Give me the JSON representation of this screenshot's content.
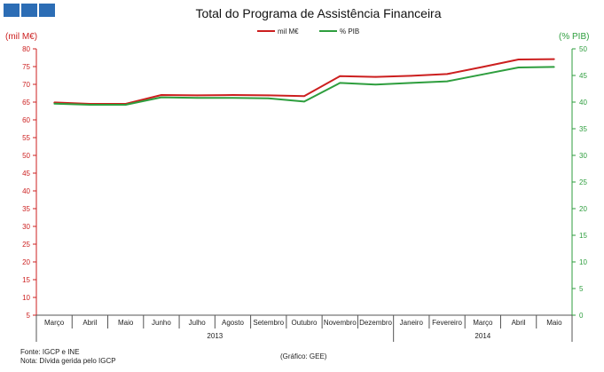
{
  "logo": {
    "color": "#2c6db5"
  },
  "chart_data": {
    "type": "line",
    "title": "Total do Programa de Assistência Financeira",
    "ylabel_left": "(mil M€)",
    "ylabel_right": "(% PIB)",
    "ylim_left": [
      5,
      80
    ],
    "ylim_right": [
      0,
      50
    ],
    "yticks_left": [
      5,
      10,
      15,
      20,
      25,
      30,
      35,
      40,
      45,
      50,
      55,
      60,
      65,
      70,
      75,
      80
    ],
    "yticks_right": [
      0,
      5,
      10,
      15,
      20,
      25,
      30,
      35,
      40,
      45,
      50
    ],
    "categories": [
      "Março",
      "Abril",
      "Maio",
      "Junho",
      "Julho",
      "Agosto",
      "Setembro",
      "Outubro",
      "Novembro",
      "Dezembro",
      "Janeiro",
      "Fevereiro",
      "Março",
      "Abril",
      "Maio"
    ],
    "years": [
      {
        "label": "2013",
        "start": 0,
        "end": 9
      },
      {
        "label": "2014",
        "start": 10,
        "end": 14
      }
    ],
    "series": [
      {
        "name": "mil M€",
        "axis": "left",
        "color": "#cc1f1f",
        "values": [
          64.9,
          64.5,
          64.5,
          67.0,
          66.9,
          67.0,
          66.9,
          66.7,
          72.3,
          72.1,
          72.4,
          72.9,
          74.9,
          77.0,
          77.1
        ]
      },
      {
        "name": "% PIB",
        "axis": "right",
        "color": "#2e9e3e",
        "values": [
          39.7,
          39.5,
          39.5,
          40.9,
          40.8,
          40.8,
          40.7,
          40.1,
          43.6,
          43.3,
          43.6,
          43.9,
          45.2,
          46.5,
          46.6
        ]
      }
    ],
    "grid": false,
    "legend": "top-center"
  },
  "footer": {
    "source": "Fonte: IGCP e INE",
    "note": "Nota: Dívida gerida pelo IGCP",
    "credit": "(Gráfico: GEE)"
  }
}
